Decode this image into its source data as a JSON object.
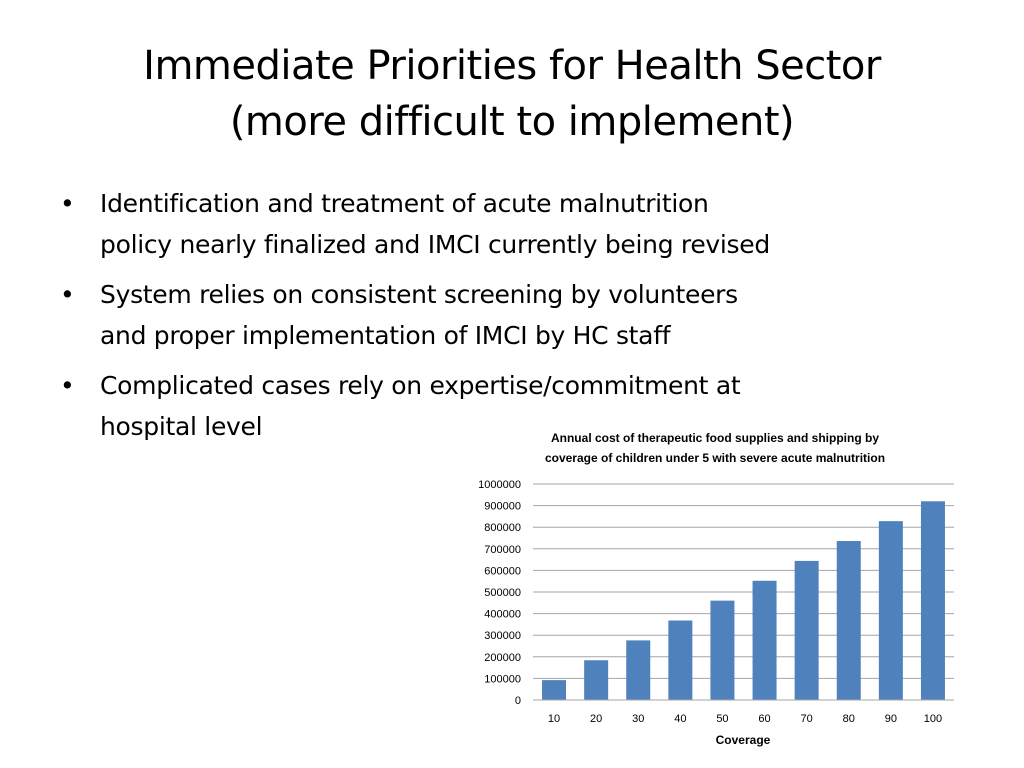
{
  "slide": {
    "title_lines": [
      "Immediate Priorities for Health Sector",
      "(more difficult to implement)"
    ],
    "bullets": [
      {
        "lines": [
          "Identification and treatment of acute malnutrition",
          "policy nearly finalized and IMCI currently being revised"
        ]
      },
      {
        "lines": [
          "System relies on consistent screening by volunteers",
          "and proper implementation of IMCI by HC staff"
        ]
      },
      {
        "lines": [
          "Complicated cases rely on expertise/commitment at",
          "hospital level"
        ]
      }
    ],
    "bullet_glyph": "•"
  },
  "chart_data": {
    "type": "bar",
    "title_lines": [
      "Annual cost of therapeutic food supplies and shipping by",
      "coverage of children under 5 with severe acute malnutrition"
    ],
    "xlabel": "Coverage",
    "ylabel": "",
    "categories": [
      "10",
      "20",
      "30",
      "40",
      "50",
      "60",
      "70",
      "80",
      "90",
      "100"
    ],
    "values": [
      92000,
      184000,
      276000,
      368000,
      460000,
      552000,
      644000,
      736000,
      828000,
      920000
    ],
    "ylim": [
      0,
      1000000
    ],
    "yticks": [
      "0",
      "100000",
      "200000",
      "300000",
      "400000",
      "500000",
      "600000",
      "700000",
      "800000",
      "900000",
      "1000000"
    ],
    "grid": true,
    "legend": "none",
    "bar_color": "#4f81bd",
    "grid_color": "#a6a6a6"
  }
}
